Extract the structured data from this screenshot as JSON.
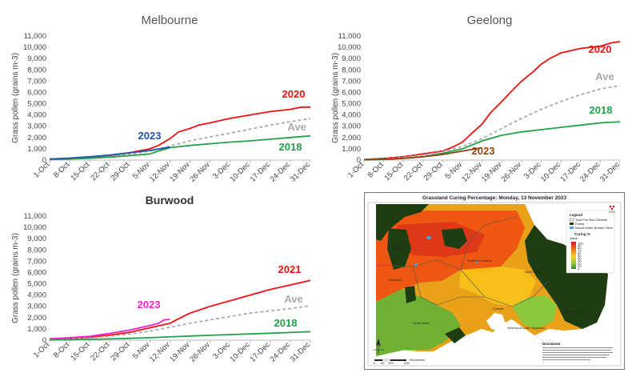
{
  "chart_data": [
    {
      "type": "line",
      "title": "Melbourne",
      "ylabel": "Grass pollen (grains m-3)",
      "ylim": [
        0,
        11000
      ],
      "yticks": [
        0,
        1000,
        2000,
        3000,
        4000,
        5000,
        6000,
        7000,
        8000,
        9000,
        10000,
        11000
      ],
      "ytick_labels": [
        "0",
        "1,000",
        "2,000",
        "3,000",
        "4,000",
        "5,000",
        "6,000",
        "7,000",
        "8,000",
        "9,000",
        "10,000",
        "11,000"
      ],
      "xticks": [
        "1-Oct",
        "8-Oct",
        "15-Oct",
        "22-Oct",
        "29-Oct",
        "5-Nov",
        "12-Nov",
        "19-Nov",
        "26-Nov",
        "3-Dec",
        "10-Dec",
        "17-Dec",
        "24-Dec",
        "31-Dec"
      ],
      "x_unit": "days from 1-Oct",
      "series": [
        {
          "name": "2020",
          "color": "#ee1111",
          "dashed": false,
          "x": [
            0,
            7,
            14,
            21,
            28,
            35,
            38,
            42,
            45,
            49,
            52,
            56,
            63,
            70,
            77,
            84,
            88,
            91
          ],
          "y": [
            80,
            150,
            230,
            400,
            650,
            1000,
            1300,
            1900,
            2500,
            2800,
            3100,
            3300,
            3700,
            4000,
            4300,
            4500,
            4700,
            4700
          ]
        },
        {
          "name": "Ave",
          "color": "#aaaaaa",
          "dashed": true,
          "x": [
            0,
            7,
            14,
            21,
            28,
            35,
            42,
            49,
            56,
            63,
            70,
            77,
            84,
            91
          ],
          "y": [
            60,
            120,
            200,
            330,
            520,
            800,
            1250,
            1700,
            2050,
            2400,
            2750,
            3100,
            3400,
            3700
          ]
        },
        {
          "name": "2018",
          "color": "#22a24a",
          "dashed": false,
          "x": [
            0,
            7,
            14,
            21,
            28,
            35,
            38,
            42,
            49,
            56,
            63,
            70,
            77,
            84,
            91
          ],
          "y": [
            50,
            100,
            160,
            260,
            400,
            550,
            800,
            1100,
            1300,
            1450,
            1600,
            1700,
            1850,
            2000,
            2150
          ]
        },
        {
          "name": "2023",
          "color": "#2255aa",
          "dashed": false,
          "x": [
            0,
            7,
            14,
            21,
            28,
            35,
            42
          ],
          "y": [
            100,
            180,
            300,
            450,
            650,
            850,
            1150
          ]
        }
      ]
    },
    {
      "type": "line",
      "title": "Geelong",
      "ylabel": "Grass pollen (grains m-3)",
      "ylim": [
        0,
        11000
      ],
      "yticks": [
        0,
        1000,
        2000,
        3000,
        4000,
        5000,
        6000,
        7000,
        8000,
        9000,
        10000,
        11000
      ],
      "ytick_labels": [
        "0",
        "1,000",
        "2,000",
        "3,000",
        "4,000",
        "5,000",
        "6,000",
        "7,000",
        "8,000",
        "9,000",
        "10,000",
        "11,000"
      ],
      "xticks": [
        "1-Oct",
        "8-Oct",
        "15-Oct",
        "22-Oct",
        "29-Oct",
        "5-Nov",
        "12-Nov",
        "19-Nov",
        "26-Nov",
        "3-Dec",
        "10-Dec",
        "17-Dec",
        "24-Dec",
        "31-Dec"
      ],
      "x_unit": "days from 1-Oct",
      "series": [
        {
          "name": "2020",
          "color": "#ee1111",
          "dashed": false,
          "x": [
            0,
            7,
            14,
            21,
            28,
            32,
            35,
            38,
            42,
            45,
            49,
            52,
            56,
            60,
            63,
            66,
            70,
            77,
            84,
            88,
            91
          ],
          "y": [
            50,
            150,
            300,
            550,
            800,
            1200,
            1600,
            2300,
            3200,
            4200,
            5200,
            6000,
            7000,
            7800,
            8500,
            9000,
            9500,
            9900,
            10100,
            10400,
            10500
          ]
        },
        {
          "name": "Ave",
          "color": "#aaaaaa",
          "dashed": true,
          "x": [
            0,
            7,
            14,
            21,
            28,
            35,
            42,
            49,
            56,
            63,
            70,
            77,
            84,
            91
          ],
          "y": [
            40,
            100,
            250,
            450,
            750,
            1200,
            1900,
            2800,
            3700,
            4500,
            5200,
            5800,
            6300,
            6600
          ]
        },
        {
          "name": "2018",
          "color": "#22a24a",
          "dashed": false,
          "x": [
            0,
            7,
            14,
            21,
            28,
            35,
            42,
            49,
            56,
            63,
            70,
            77,
            84,
            91
          ],
          "y": [
            20,
            60,
            150,
            300,
            600,
            1000,
            1700,
            2200,
            2500,
            2700,
            2900,
            3100,
            3300,
            3400
          ]
        },
        {
          "name": "2023",
          "color": "#8b4513",
          "dashed": false,
          "x": [
            0,
            7,
            14,
            21,
            28,
            35,
            42
          ],
          "y": [
            30,
            70,
            150,
            300,
            500,
            800,
            1100
          ]
        }
      ]
    },
    {
      "type": "line",
      "title": "Burwood",
      "ylabel": "Grass pollen (grains m-3)",
      "ylim": [
        0,
        11000
      ],
      "yticks": [
        0,
        1000,
        2000,
        3000,
        4000,
        5000,
        6000,
        7000,
        8000,
        9000,
        10000,
        11000
      ],
      "ytick_labels": [
        "0",
        "1,000",
        "2,000",
        "3,000",
        "4,000",
        "5,000",
        "6,000",
        "7,000",
        "8,000",
        "9,000",
        "10,000",
        "11,000"
      ],
      "xticks": [
        "1-Oct",
        "8-Oct",
        "15-Oct",
        "22-Oct",
        "29-Oct",
        "5-Nov",
        "12-Nov",
        "19-Nov",
        "26-Nov",
        "3-Dec",
        "10-Dec",
        "17-Dec",
        "24-Dec",
        "31-Dec"
      ],
      "x_unit": "days from 1-Oct",
      "series": [
        {
          "name": "2021",
          "color": "#ee1111",
          "dashed": false,
          "x": [
            0,
            7,
            14,
            21,
            28,
            35,
            42,
            45,
            49,
            56,
            63,
            70,
            77,
            84,
            91
          ],
          "y": [
            80,
            150,
            250,
            450,
            700,
            1100,
            1500,
            1900,
            2400,
            3000,
            3500,
            4000,
            4500,
            4900,
            5300
          ]
        },
        {
          "name": "Ave",
          "color": "#aaaaaa",
          "dashed": true,
          "x": [
            0,
            7,
            14,
            21,
            28,
            35,
            42,
            49,
            56,
            63,
            70,
            77,
            84,
            91
          ],
          "y": [
            60,
            120,
            200,
            350,
            550,
            800,
            1150,
            1500,
            1800,
            2100,
            2400,
            2600,
            2800,
            3050
          ]
        },
        {
          "name": "2018",
          "color": "#22a24a",
          "dashed": false,
          "x": [
            0,
            7,
            14,
            21,
            28,
            35,
            42,
            49,
            56,
            63,
            70,
            77,
            84,
            91
          ],
          "y": [
            20,
            40,
            70,
            110,
            160,
            220,
            290,
            370,
            430,
            500,
            560,
            620,
            680,
            750
          ]
        },
        {
          "name": "2023",
          "color": "#ee22cc",
          "dashed": false,
          "x": [
            0,
            7,
            14,
            21,
            28,
            35,
            38,
            40,
            42
          ],
          "y": [
            120,
            220,
            350,
            600,
            900,
            1300,
            1500,
            1800,
            1850
          ]
        }
      ]
    }
  ],
  "map": {
    "title": "Grassland Curing Percentage: Monday, 13 November 2023",
    "legend_title": "Legend",
    "legend_items": [
      "Total Fire Ban Districts",
      "Forest",
      "Inland Water Bodies >8Ha"
    ],
    "scale_title": "Curing %",
    "scale_sub": "Value",
    "scale_values": [
      "100",
      "90",
      "80",
      "70",
      "60",
      "50",
      "40",
      "30",
      "20",
      "10",
      "0"
    ],
    "region_labels": [
      "Mallee",
      "Wimmera",
      "Northern Country",
      "North East",
      "Central",
      "West and South Gippsland",
      "East Gippsland",
      "South West"
    ],
    "disclaimer_title": "Disclaimer",
    "logo_text": "CFA",
    "scale_bar_ticks": [
      "0",
      "50",
      "100",
      "200"
    ],
    "scale_bar_unit": "Kilometres",
    "colors": {
      "forest": "#1e3d13",
      "grass_high": "#ee4a10",
      "grass_mid": "#f7c21a",
      "grass_low": "#8cc83c",
      "water": "#4aa3df",
      "sea": "#ffffff"
    }
  }
}
